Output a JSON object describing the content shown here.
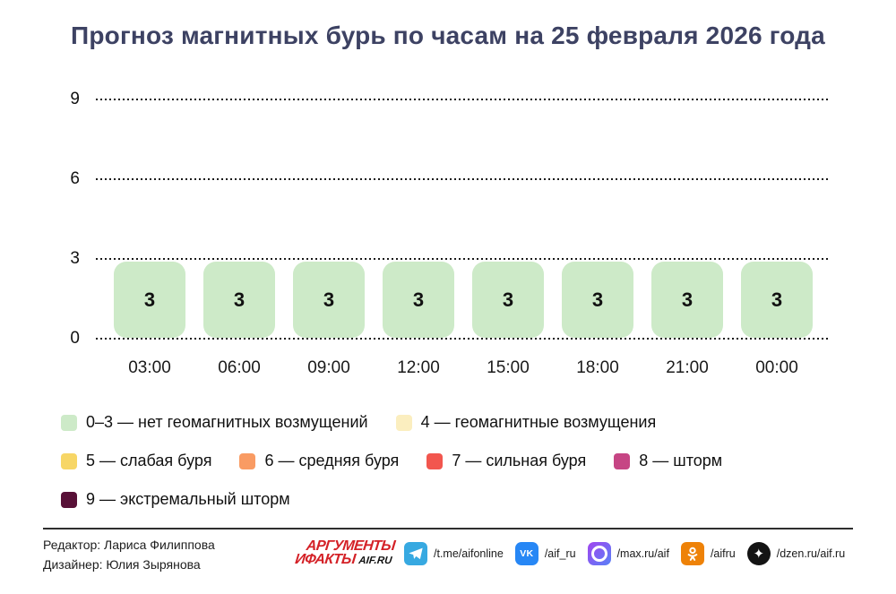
{
  "title": "Прогноз магнитных бурь по часам на 25 февраля 2026 года",
  "chart_data": {
    "type": "bar",
    "title": "Прогноз магнитных бурь по часам на 25 февраля 2026 года",
    "categories": [
      "03:00",
      "06:00",
      "09:00",
      "12:00",
      "15:00",
      "18:00",
      "21:00",
      "00:00"
    ],
    "values": [
      3,
      3,
      3,
      3,
      3,
      3,
      3,
      3
    ],
    "xlabel": "",
    "ylabel": "",
    "ylim": [
      0,
      9
    ],
    "yticks": [
      9,
      6,
      3,
      0
    ],
    "grid": "horizontal-dotted",
    "bar_color": "#cdeac8",
    "value_label_color": "#111111",
    "value_labels_shown": true,
    "legend_position": "below"
  },
  "legend": {
    "rows": [
      [
        {
          "color": "#cdeac8",
          "label": "0–3 — нет геомагнитных возмущений"
        },
        {
          "color": "#fbeebf",
          "label": "4 — геомагнитные возмущения"
        }
      ],
      [
        {
          "color": "#f7d666",
          "label": "5 — слабая буря"
        },
        {
          "color": "#f99b63",
          "label": "6 — средняя буря"
        },
        {
          "color": "#f2564e",
          "label": "7 — сильная буря"
        },
        {
          "color": "#c64584",
          "label": "8 — шторм"
        }
      ],
      [
        {
          "color": "#581037",
          "label": "9 — экстремальный шторм"
        }
      ]
    ]
  },
  "footer": {
    "credits": {
      "editor": "Редактор: Лариса Филиппова",
      "designer": "Дизайнер: Юлия Зырянова"
    },
    "logo": {
      "line1": "АРГУМЕНТЫ",
      "line2": "ИФАКТЫ",
      "suffix": "AIF.RU"
    },
    "social": [
      {
        "icon": "telegram-icon",
        "handle": "/t.me/aifonline",
        "color": "#37a9e1"
      },
      {
        "icon": "vk-icon",
        "handle": "/aif_ru",
        "color": "#2787f5"
      },
      {
        "icon": "max-icon",
        "handle": "/max.ru/aif",
        "color": "#8a5cf0"
      },
      {
        "icon": "ok-icon",
        "handle": "/aifru",
        "color": "#ee8208"
      },
      {
        "icon": "dzen-icon",
        "handle": "/dzen.ru/aif.ru",
        "color": "#141414"
      }
    ]
  }
}
